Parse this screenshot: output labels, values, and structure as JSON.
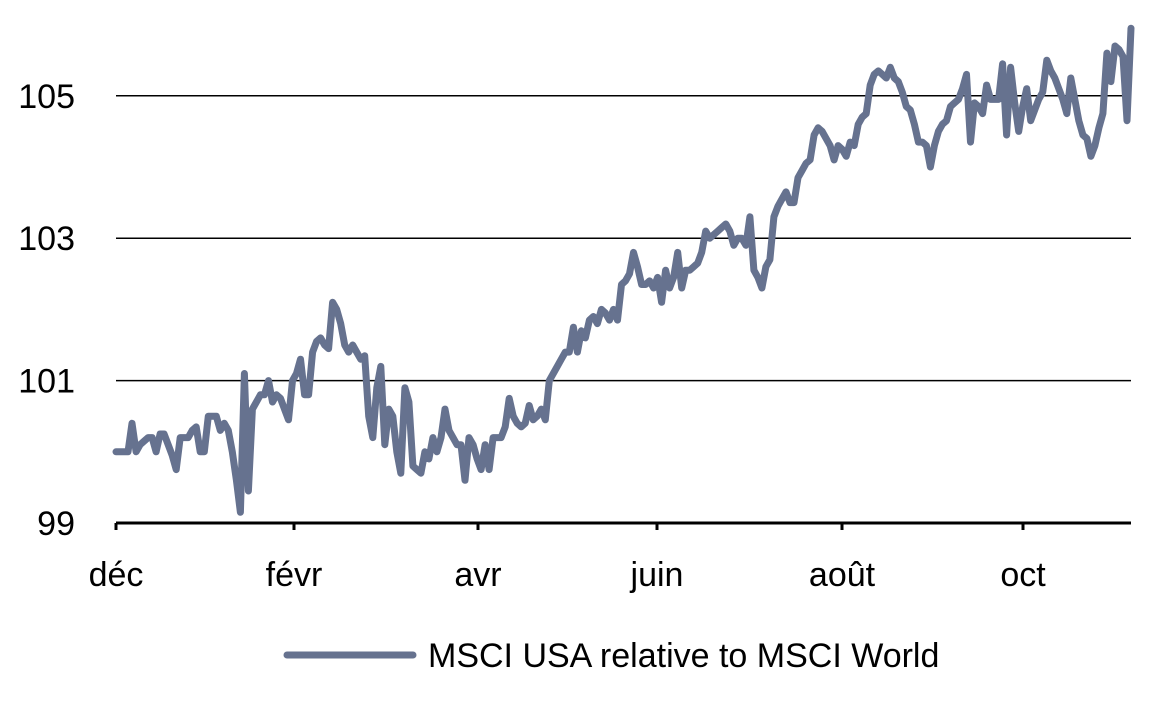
{
  "chart_data": {
    "type": "line",
    "title": "",
    "xlabel": "",
    "ylabel": "",
    "ylim": [
      99,
      106
    ],
    "yticks": [
      99,
      101,
      103,
      105
    ],
    "x_tick_labels": [
      "déc",
      "févr",
      "avr",
      "juin",
      "août",
      "oct"
    ],
    "grid": "horizontal",
    "legend_position": "bottom-center",
    "colors": {
      "series": "#66728F",
      "grid": "#000000",
      "axis": "#000000"
    },
    "series": [
      {
        "name": "MSCI USA relative to MSCI World",
        "values": [
          100.0,
          100.0,
          100.0,
          100.0,
          100.4,
          100.0,
          100.1,
          100.15,
          100.2,
          100.2,
          100.0,
          100.25,
          100.25,
          100.1,
          99.95,
          99.75,
          100.2,
          100.2,
          100.2,
          100.3,
          100.35,
          100.0,
          100.0,
          100.5,
          100.5,
          100.5,
          100.3,
          100.4,
          100.3,
          100.0,
          99.6,
          99.15,
          101.1,
          99.45,
          100.6,
          100.7,
          100.8,
          100.8,
          101.0,
          100.7,
          100.8,
          100.75,
          100.6,
          100.45,
          101.0,
          101.1,
          101.3,
          100.8,
          100.8,
          101.4,
          101.55,
          101.6,
          101.5,
          101.45,
          102.1,
          102.0,
          101.8,
          101.5,
          101.4,
          101.5,
          101.4,
          101.3,
          101.35,
          100.5,
          100.2,
          100.9,
          101.2,
          100.1,
          100.6,
          100.5,
          100.0,
          99.7,
          100.9,
          100.7,
          99.8,
          99.75,
          99.7,
          100.0,
          99.9,
          100.2,
          100.0,
          100.2,
          100.6,
          100.3,
          100.2,
          100.1,
          100.1,
          99.6,
          100.2,
          100.1,
          99.9,
          99.75,
          100.1,
          99.75,
          100.2,
          100.2,
          100.2,
          100.35,
          100.75,
          100.5,
          100.4,
          100.35,
          100.4,
          100.65,
          100.45,
          100.5,
          100.6,
          100.45,
          101.0,
          101.1,
          101.2,
          101.3,
          101.4,
          101.4,
          101.75,
          101.4,
          101.7,
          101.6,
          101.85,
          101.9,
          101.8,
          102.0,
          101.95,
          101.85,
          102.0,
          101.85,
          102.35,
          102.4,
          102.5,
          102.8,
          102.6,
          102.35,
          102.35,
          102.4,
          102.3,
          102.45,
          102.1,
          102.55,
          102.3,
          102.45,
          102.8,
          102.3,
          102.55,
          102.55,
          102.6,
          102.65,
          102.8,
          103.1,
          103.0,
          103.05,
          103.1,
          103.15,
          103.2,
          103.1,
          102.9,
          103.0,
          103.0,
          102.9,
          103.3,
          102.55,
          102.45,
          102.3,
          102.6,
          102.7,
          103.3,
          103.45,
          103.55,
          103.65,
          103.5,
          103.5,
          103.85,
          103.95,
          104.05,
          104.1,
          104.45,
          104.55,
          104.5,
          104.4,
          104.3,
          104.1,
          104.3,
          104.25,
          104.15,
          104.35,
          104.3,
          104.6,
          104.7,
          104.75,
          105.15,
          105.3,
          105.35,
          105.3,
          105.25,
          105.4,
          105.25,
          105.2,
          105.05,
          104.85,
          104.8,
          104.6,
          104.35,
          104.35,
          104.3,
          104.0,
          104.3,
          104.5,
          104.6,
          104.65,
          104.85,
          104.9,
          104.95,
          105.1,
          105.3,
          104.35,
          104.9,
          104.85,
          104.75,
          105.15,
          104.95,
          104.95,
          104.95,
          105.45,
          104.45,
          105.4,
          104.9,
          104.5,
          104.85,
          105.1,
          104.65,
          104.8,
          104.95,
          105.05,
          105.5,
          105.35,
          105.25,
          105.1,
          104.95,
          104.75,
          105.25,
          104.95,
          104.65,
          104.45,
          104.4,
          104.15,
          104.3,
          104.55,
          104.75,
          105.6,
          105.2,
          105.7,
          105.65,
          105.55,
          104.65,
          105.95
        ]
      }
    ]
  }
}
